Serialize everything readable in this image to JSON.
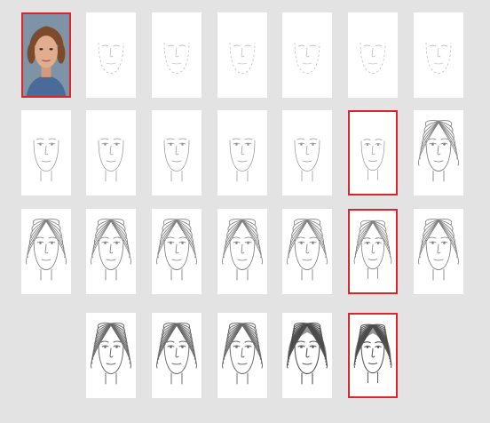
{
  "colors": {
    "background": "#e3e3e3",
    "card": "#ffffff",
    "selection": "#d9262c",
    "ink": "#555555"
  },
  "rows": [
    {
      "thumbs": [
        {
          "type": "photo",
          "detail": 0,
          "selected": true,
          "icon": "portrait-photo-icon"
        },
        {
          "type": "sketch",
          "detail": 1,
          "selected": false,
          "icon": "face-sketch-icon"
        },
        {
          "type": "sketch",
          "detail": 1,
          "selected": false,
          "icon": "face-sketch-icon"
        },
        {
          "type": "sketch",
          "detail": 1,
          "selected": false,
          "icon": "face-sketch-icon"
        },
        {
          "type": "sketch",
          "detail": 1,
          "selected": false,
          "icon": "face-sketch-icon"
        },
        {
          "type": "sketch",
          "detail": 1,
          "selected": false,
          "icon": "face-sketch-icon"
        },
        {
          "type": "sketch",
          "detail": 1,
          "selected": false,
          "icon": "face-sketch-icon"
        }
      ]
    },
    {
      "thumbs": [
        {
          "type": "sketch",
          "detail": 2,
          "selected": false,
          "icon": "face-sketch-icon"
        },
        {
          "type": "sketch",
          "detail": 2,
          "selected": false,
          "icon": "face-sketch-icon"
        },
        {
          "type": "sketch",
          "detail": 2,
          "selected": false,
          "icon": "face-sketch-icon"
        },
        {
          "type": "sketch",
          "detail": 2,
          "selected": false,
          "icon": "face-sketch-icon"
        },
        {
          "type": "sketch",
          "detail": 2,
          "selected": false,
          "icon": "face-sketch-icon"
        },
        {
          "type": "sketch",
          "detail": 2,
          "selected": true,
          "icon": "face-sketch-icon"
        },
        {
          "type": "sketch",
          "detail": 3,
          "selected": false,
          "icon": "face-sketch-icon"
        }
      ]
    },
    {
      "thumbs": [
        {
          "type": "sketch",
          "detail": 3,
          "selected": false,
          "icon": "face-sketch-icon"
        },
        {
          "type": "sketch",
          "detail": 3,
          "selected": false,
          "icon": "face-sketch-icon"
        },
        {
          "type": "sketch",
          "detail": 3,
          "selected": false,
          "icon": "face-sketch-icon"
        },
        {
          "type": "sketch",
          "detail": 3,
          "selected": false,
          "icon": "face-sketch-icon"
        },
        {
          "type": "sketch",
          "detail": 3,
          "selected": false,
          "icon": "face-sketch-icon"
        },
        {
          "type": "sketch",
          "detail": 3,
          "selected": true,
          "icon": "face-sketch-icon"
        },
        {
          "type": "sketch",
          "detail": 3,
          "selected": false,
          "icon": "face-sketch-icon"
        }
      ]
    },
    {
      "thumbs": [
        {
          "type": "sketch",
          "detail": 4,
          "selected": false,
          "icon": "face-sketch-icon"
        },
        {
          "type": "sketch",
          "detail": 4,
          "selected": false,
          "icon": "face-sketch-icon"
        },
        {
          "type": "sketch",
          "detail": 4,
          "selected": false,
          "icon": "face-sketch-icon"
        },
        {
          "type": "sketch",
          "detail": 5,
          "selected": false,
          "icon": "face-sketch-icon"
        },
        {
          "type": "sketch",
          "detail": 5,
          "selected": true,
          "icon": "face-sketch-icon"
        }
      ]
    }
  ]
}
